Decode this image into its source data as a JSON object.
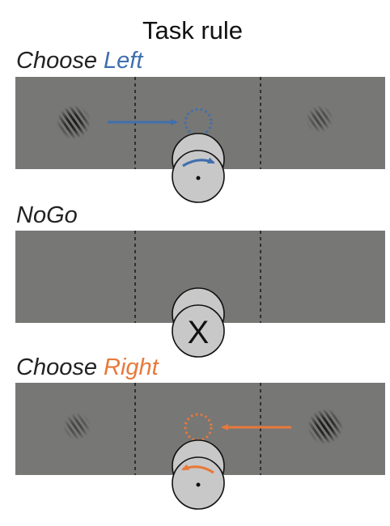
{
  "title": "Task rule",
  "panels": [
    {
      "id": "choose-left",
      "label_prefix": "Choose ",
      "label_highlight": "Left",
      "label_color": "#3f6fae",
      "left_grating": "strong",
      "right_grating": "weak",
      "arrow_direction": "right",
      "target_side": "center-left",
      "wheel": "turn-right"
    },
    {
      "id": "nogo",
      "label_prefix": "NoGo",
      "label_highlight": "",
      "label_color": "#222222",
      "left_grating": "none",
      "right_grating": "none",
      "arrow_direction": "none",
      "wheel": "hold",
      "wheel_symbol": "X"
    },
    {
      "id": "choose-right",
      "label_prefix": "Choose ",
      "label_highlight": "Right",
      "label_color": "#e8793a",
      "left_grating": "weak",
      "right_grating": "strong",
      "arrow_direction": "left",
      "wheel": "turn-left"
    }
  ],
  "colors": {
    "screen": "#777775",
    "divider": "#1e1e1e",
    "wheel_fill": "#c8c8c8",
    "wheel_stroke": "#111111",
    "left_accent": "#3f6fae",
    "right_accent": "#e8793a"
  },
  "icons": {
    "grating": "gabor-patch",
    "wheel": "steering-wheel-icon",
    "target": "dotted-circle-target",
    "nogo": "x-mark"
  }
}
